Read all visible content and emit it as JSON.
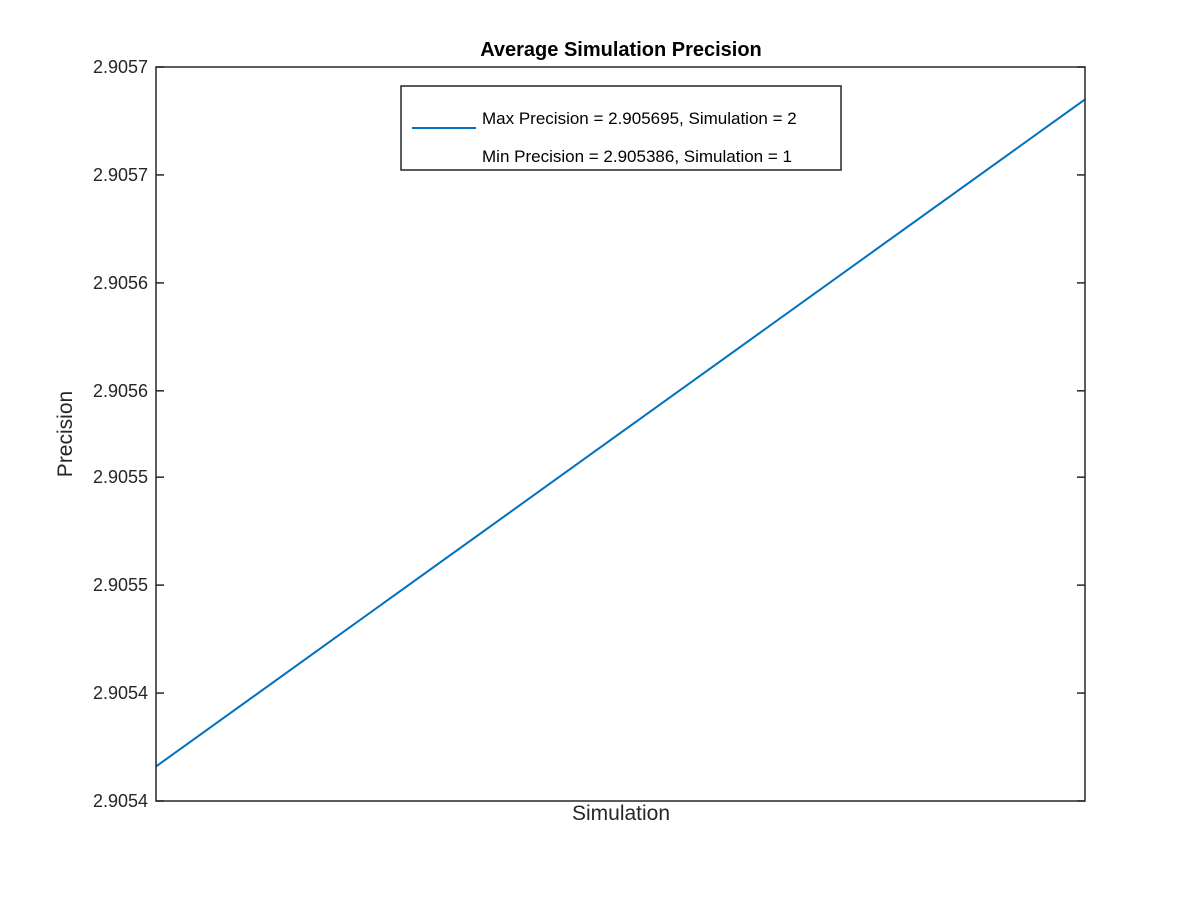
{
  "chart_data": {
    "type": "line",
    "title": "Average Simulation Precision",
    "xlabel": "Simulation",
    "ylabel": "Precision",
    "x": [
      1,
      2
    ],
    "xlim": [
      1,
      2
    ],
    "ylim": [
      2.90537,
      2.90571
    ],
    "y_ticks": [
      2.90537,
      2.90542,
      2.90547,
      2.90552,
      2.90556,
      2.90561,
      2.90566,
      2.90571
    ],
    "y_tick_labels": [
      "2.9054",
      "2.9054",
      "2.9055",
      "2.9055",
      "2.9056",
      "2.9056",
      "2.9057",
      "2.9057"
    ],
    "series": [
      {
        "name": "Max Precision = 2.905695, Simulation = 2",
        "x": [
          1,
          2
        ],
        "y": [
          2.905386,
          2.905695
        ],
        "color": "#0072bd"
      }
    ],
    "legend": {
      "position": "top-center",
      "entries": [
        "Max Precision = 2.905695, Simulation = 2",
        "Min Precision = 2.905386, Simulation = 1"
      ]
    },
    "grid": false
  }
}
